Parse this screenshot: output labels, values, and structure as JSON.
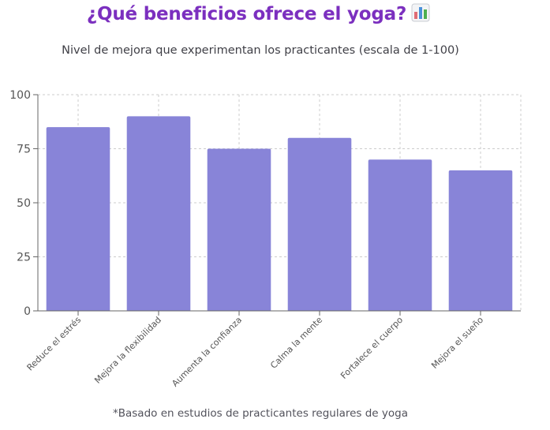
{
  "header": {
    "title": "¿Qué beneficios ofrece el yoga?",
    "title_icon": "bar-chart-icon",
    "subtitle": "Nivel de mejora que experimentan los practicantes (escala de 1-100)"
  },
  "footer": {
    "note": "*Basado en estudios de practicantes regulares de yoga"
  },
  "colors": {
    "title": "#7b2fbf",
    "bar": "#8884d8",
    "grid": "#cccccc",
    "axis": "#666666"
  },
  "chart_data": {
    "type": "bar",
    "categories": [
      "Reduce el estrés",
      "Mejora la flexibilidad",
      "Aumenta la confianza",
      "Calma la mente",
      "Fortalece el cuerpo",
      "Mejora el sueño"
    ],
    "values": [
      85,
      90,
      75,
      80,
      70,
      65
    ],
    "title": "¿Qué beneficios ofrece el yoga?",
    "subtitle": "Nivel de mejora que experimentan los practicantes (escala de 1-100)",
    "xlabel": "",
    "ylabel": "",
    "ylim": [
      0,
      100
    ],
    "yticks": [
      0,
      25,
      50,
      75,
      100
    ],
    "grid": true,
    "legend": "none"
  }
}
